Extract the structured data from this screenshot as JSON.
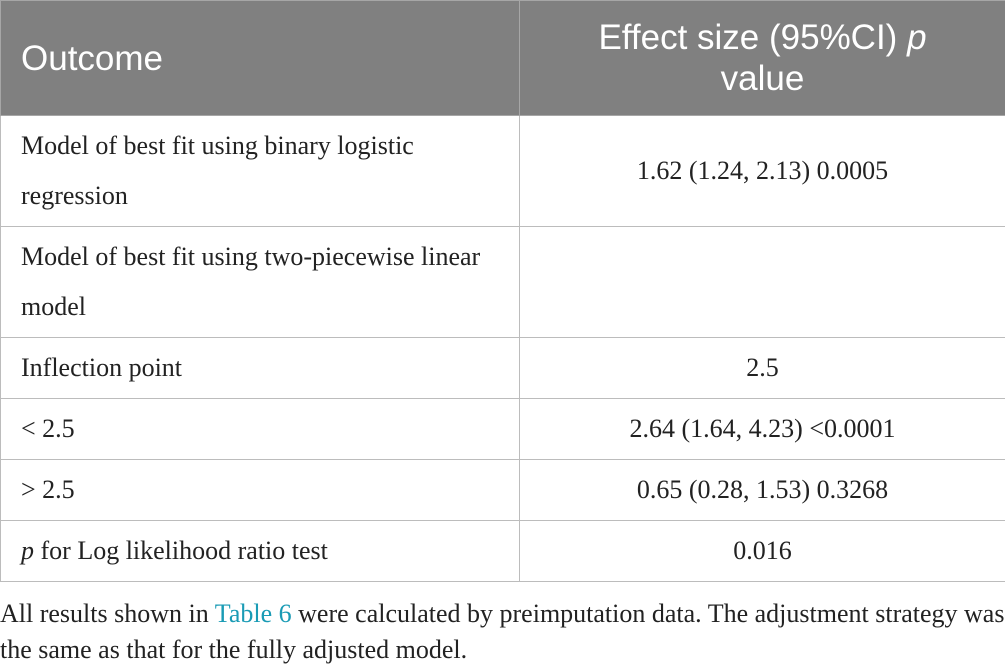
{
  "table": {
    "headers": {
      "outcome": "Outcome",
      "effect": "Effect size (95%CI)",
      "effect_p": "p",
      "effect_suffix": "value"
    },
    "rows": [
      {
        "outcome": "Model of best fit using binary logistic regression",
        "value": "1.62 (1.24, 2.13) 0.0005"
      },
      {
        "outcome": "Model of best fit using two-piecewise linear model",
        "value": ""
      },
      {
        "outcome": "Inflection point",
        "value": "2.5"
      },
      {
        "outcome": "< 2.5",
        "value": "2.64 (1.64, 4.23) <0.0001"
      },
      {
        "outcome": "> 2.5",
        "value": "0.65 (0.28, 1.53) 0.3268"
      },
      {
        "outcome_p": "p",
        "outcome": "for Log likelihood ratio test",
        "value": "0.016"
      }
    ]
  },
  "footnote": {
    "prefix": "All results shown in",
    "link": "Table 6",
    "suffix": "were calculated by preimputation data. The adjustment strategy was the same as that for the fully adjusted model."
  }
}
